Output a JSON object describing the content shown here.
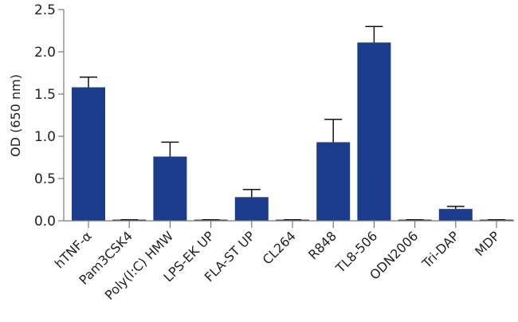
{
  "chart_data": {
    "type": "bar",
    "title": "",
    "xlabel": "",
    "ylabel": "OD (650 nm)",
    "ylim": [
      0,
      2.5
    ],
    "yticks": [
      "0.0",
      "0.5",
      "1.0",
      "1.5",
      "2.0",
      "2.5"
    ],
    "grid": false,
    "legend": null,
    "categories": [
      "hTNF-α",
      "Pam3CSK4",
      "Poly(I:C) HMW",
      "LPS-EK UP",
      "FLA-ST UP",
      "CL264",
      "R848",
      "TL8-506",
      "ODN2006",
      "Tri-DAP",
      "MDP"
    ],
    "values": [
      1.58,
      0.01,
      0.76,
      0.01,
      0.28,
      0.01,
      0.93,
      2.11,
      0.005,
      0.14,
      0.005
    ],
    "error_upper": [
      0.12,
      0.0,
      0.17,
      0.0,
      0.09,
      0.0,
      0.27,
      0.19,
      0.0,
      0.03,
      0.0
    ],
    "bar_color": "#1c3c8c"
  }
}
